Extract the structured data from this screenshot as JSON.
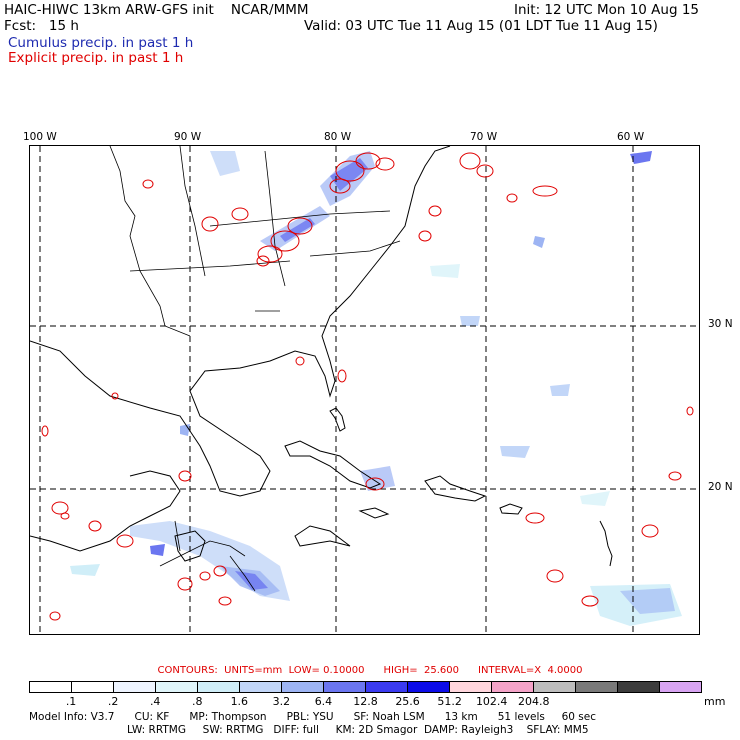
{
  "header": {
    "title_left": "HAIC-HIWC 13km ARW-GFS init    NCAR/MMM",
    "init": "Init: 12 UTC Mon 10 Aug 15",
    "fcst": "Fcst:   15 h",
    "valid": "Valid: 03 UTC Tue 11 Aug 15 (01 LDT Tue 11 Aug 15)",
    "cumulus": "Cumulus precip. in past 1 h",
    "explicit": "Explicit precip. in past 1 h"
  },
  "colors": {
    "cumulus_text": "#1e2bb0",
    "explicit_text": "#e00000",
    "contour": "#e00000",
    "coast": "#000000"
  },
  "map": {
    "lon_labels": [
      "100 W",
      "90 W",
      "80 W",
      "70 W",
      "60 W"
    ],
    "lat_labels": [
      "30 N",
      "20 N"
    ]
  },
  "contours": {
    "text": "CONTOURS:  UNITS=mm  LOW= 0.10000      HIGH=  25.600      INTERVAL=X  4.0000"
  },
  "colorbar": {
    "colors": [
      "#ffffff",
      "#ffffff",
      "#eef4ff",
      "#e0f5fa",
      "#d0eef8",
      "#c2d6f8",
      "#9db4f3",
      "#6b76f0",
      "#3b3bf0",
      "#0c0ce8",
      "#ffd6dd",
      "#f4a3c8",
      "#bdbdbd",
      "#7a7a7a",
      "#3c3c3c",
      "#d8a4f2"
    ],
    "labels": [
      ".1",
      ".2",
      ".4",
      ".8",
      "1.6",
      "3.2",
      "6.4",
      "12.8",
      "25.6",
      "51.2",
      "102.4",
      "204.8"
    ],
    "units": "mm"
  },
  "model_info": {
    "line1": "Model Info: V3.7      CU: KF      MP: Thompson      PBL: YSU      SF: Noah LSM      13 km      51 levels     60 sec",
    "line2": "LW: RRTMG     SW: RRTMG   DIFF: full     KM: 2D Smagor  DAMP: Rayleigh3    SFLAY: MM5"
  }
}
